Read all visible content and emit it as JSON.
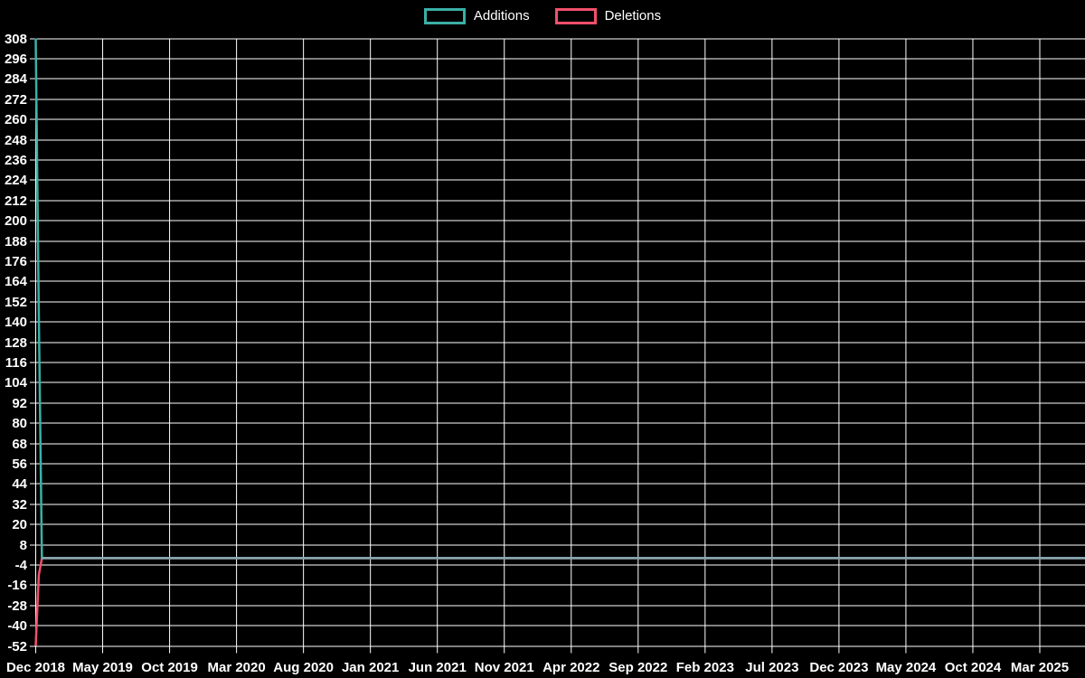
{
  "legend": {
    "items": [
      {
        "label": "Additions"
      },
      {
        "label": "Deletions"
      }
    ]
  },
  "chart_data": {
    "type": "line",
    "title": "",
    "xlabel": "",
    "ylabel": "",
    "background_color": "#000000",
    "grid": true,
    "grid_color": "#ffffff",
    "text_color": "#ffffff",
    "legend_position": "top-center",
    "ylim": [
      -52,
      308
    ],
    "y_tick_step": 12,
    "y_tick_labels": [
      308,
      296,
      284,
      272,
      260,
      248,
      236,
      224,
      212,
      200,
      188,
      176,
      164,
      152,
      140,
      128,
      116,
      104,
      92,
      80,
      68,
      56,
      44,
      32,
      20,
      8,
      -4,
      -16,
      -28,
      -40,
      -52
    ],
    "x_tick_labels": [
      "Dec 2018",
      "May 2019",
      "Oct 2019",
      "Mar 2020",
      "Aug 2020",
      "Jan 2021",
      "Jun 2021",
      "Nov 2021",
      "Apr 2022",
      "Sep 2022",
      "Feb 2023",
      "Jul 2023",
      "Dec 2023",
      "May 2024",
      "Oct 2024",
      "Mar 2025"
    ],
    "x_unit": "week",
    "n_points": 340,
    "series": [
      {
        "name": "Additions",
        "color": "#3bafa7",
        "initial_values": [
          308,
          145
        ],
        "remaining_value": 0
      },
      {
        "name": "Deletions",
        "color": "#f2506b",
        "initial_values": [
          -52,
          -10
        ],
        "remaining_value": 0
      }
    ],
    "overlap_line_color": "#8ba7b1",
    "overlap_line_value": 0
  }
}
